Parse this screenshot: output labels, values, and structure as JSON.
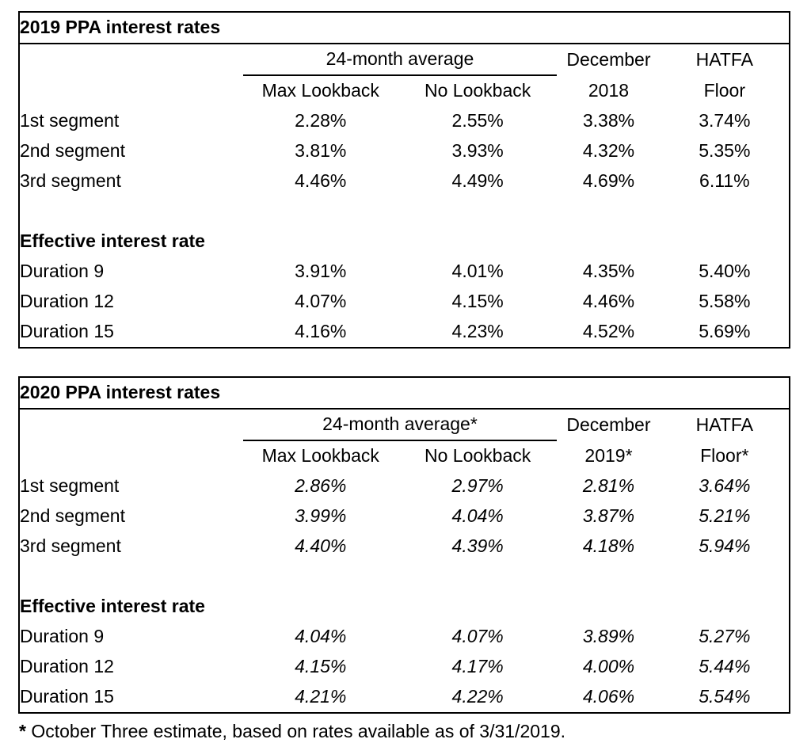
{
  "footnote": {
    "marker": "*",
    "text": " October Three estimate, based on rates available as of 3/31/2019."
  },
  "tables": [
    {
      "title": "2019 PPA interest rates",
      "headers": {
        "group": "24-month average",
        "max_lookback": "Max Lookback",
        "no_lookback": "No Lookback",
        "december_line1": "December",
        "december_line2": "2018",
        "hatfa_line1": "HATFA",
        "hatfa_line2": "Floor"
      },
      "segments": [
        {
          "label": "1st segment",
          "values": [
            "2.28%",
            "2.55%",
            "3.38%",
            "3.74%"
          ]
        },
        {
          "label": "2nd segment",
          "values": [
            "3.81%",
            "3.93%",
            "4.32%",
            "5.35%"
          ]
        },
        {
          "label": "3rd segment",
          "values": [
            "4.46%",
            "4.49%",
            "4.69%",
            "6.11%"
          ]
        }
      ],
      "effective_heading": "Effective interest rate",
      "durations": [
        {
          "label": "Duration 9",
          "values": [
            "3.91%",
            "4.01%",
            "4.35%",
            "5.40%"
          ]
        },
        {
          "label": "Duration 12",
          "values": [
            "4.07%",
            "4.15%",
            "4.46%",
            "5.58%"
          ]
        },
        {
          "label": "Duration 15",
          "values": [
            "4.16%",
            "4.23%",
            "4.52%",
            "5.69%"
          ]
        }
      ]
    },
    {
      "title": "2020 PPA interest rates",
      "headers": {
        "group": "24-month average*",
        "max_lookback": "Max Lookback",
        "no_lookback": "No Lookback",
        "december_line1": "December",
        "december_line2": "2019*",
        "hatfa_line1": "HATFA",
        "hatfa_line2": "Floor*"
      },
      "segments": [
        {
          "label": "1st segment",
          "values": [
            "2.86%",
            "2.97%",
            "2.81%",
            "3.64%"
          ]
        },
        {
          "label": "2nd segment",
          "values": [
            "3.99%",
            "4.04%",
            "3.87%",
            "5.21%"
          ]
        },
        {
          "label": "3rd segment",
          "values": [
            "4.40%",
            "4.39%",
            "4.18%",
            "5.94%"
          ]
        }
      ],
      "effective_heading": "Effective interest rate",
      "durations": [
        {
          "label": "Duration 9",
          "values": [
            "4.04%",
            "4.07%",
            "3.89%",
            "5.27%"
          ]
        },
        {
          "label": "Duration 12",
          "values": [
            "4.15%",
            "4.17%",
            "4.00%",
            "5.44%"
          ]
        },
        {
          "label": "Duration 15",
          "values": [
            "4.21%",
            "4.22%",
            "4.06%",
            "5.54%"
          ]
        }
      ]
    }
  ]
}
